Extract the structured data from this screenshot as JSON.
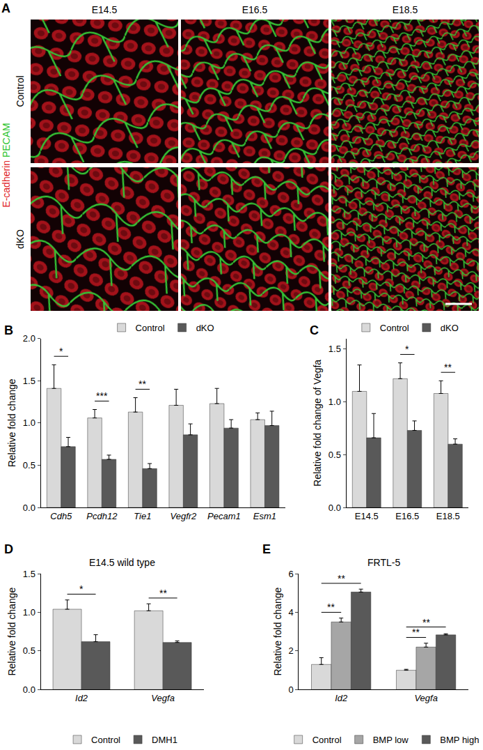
{
  "image_panel": {
    "panel": "A",
    "columns": [
      "E14.5",
      "E16.5",
      "E18.5"
    ],
    "rows": [
      "Control",
      "dKO"
    ],
    "stains": [
      {
        "text": "E-cadherin",
        "color": "#e0201e"
      },
      {
        "text": "PECAM",
        "color": "#2ec42e"
      }
    ]
  },
  "chart_data": [
    {
      "panel": "B",
      "type": "bar",
      "categories": [
        "Cdh5",
        "Pcdh12",
        "Tie1",
        "Vegfr2",
        "Pecam1",
        "Esm1"
      ],
      "series": [
        {
          "name": "Control",
          "color": "#d9d9d9",
          "values": [
            1.41,
            1.06,
            1.13,
            1.21,
            1.23,
            1.04
          ],
          "errors": [
            0.28,
            0.1,
            0.17,
            0.19,
            0.18,
            0.08
          ]
        },
        {
          "name": "dKO",
          "color": "#595959",
          "values": [
            0.72,
            0.57,
            0.46,
            0.86,
            0.94,
            0.97
          ],
          "errors": [
            0.11,
            0.05,
            0.06,
            0.13,
            0.1,
            0.17
          ]
        }
      ],
      "y_label": "Relative fold change",
      "ylim": [
        0,
        2
      ],
      "yticks": [
        {
          "value": 0,
          "label": "0.0"
        },
        {
          "value": 0.5,
          "label": "0.5"
        },
        {
          "value": 1,
          "label": "1.0"
        },
        {
          "value": 1.5,
          "label": "1.5"
        },
        {
          "value": 2,
          "label": "2.0"
        }
      ],
      "legend": "top",
      "significance": [
        {
          "category": "Cdh5",
          "between": [
            "Control",
            "dKO"
          ],
          "label": "*"
        },
        {
          "category": "Pcdh12",
          "between": [
            "Control",
            "dKO"
          ],
          "label": "***"
        },
        {
          "category": "Tie1",
          "between": [
            "Control",
            "dKO"
          ],
          "label": "**"
        }
      ]
    },
    {
      "panel": "C",
      "type": "bar",
      "categories": [
        "E14.5",
        "E16.5",
        "E18.5"
      ],
      "series": [
        {
          "name": "Control",
          "color": "#d9d9d9",
          "values": [
            1.1,
            1.22,
            1.08
          ],
          "errors": [
            0.25,
            0.15,
            0.12
          ]
        },
        {
          "name": "dKO",
          "color": "#595959",
          "values": [
            0.66,
            0.73,
            0.6
          ],
          "errors": [
            0.23,
            0.09,
            0.05
          ]
        }
      ],
      "y_label": "Relative fold change of Vegfa",
      "ylim": [
        0,
        1.6
      ],
      "yticks": [
        {
          "value": 0,
          "label": "0.0"
        },
        {
          "value": 0.5,
          "label": "0.5"
        },
        {
          "value": 1,
          "label": "1.0"
        },
        {
          "value": 1.5,
          "label": "1.5"
        }
      ],
      "legend": "top",
      "significance": [
        {
          "category": "E16.5",
          "between": [
            "Control",
            "dKO"
          ],
          "label": "*"
        },
        {
          "category": "E18.5",
          "between": [
            "Control",
            "dKO"
          ],
          "label": "**"
        }
      ]
    },
    {
      "panel": "D",
      "type": "bar",
      "title": "E14.5 wild type",
      "categories": [
        "Id2",
        "Vegfa"
      ],
      "series": [
        {
          "name": "Control",
          "color": "#d9d9d9",
          "values": [
            1.04,
            1.02
          ],
          "errors": [
            0.12,
            0.09
          ]
        },
        {
          "name": "DMH1",
          "color": "#595959",
          "values": [
            0.62,
            0.61
          ],
          "errors": [
            0.09,
            0.02
          ]
        }
      ],
      "y_label": "Relative fold change",
      "ylim": [
        0,
        1.5
      ],
      "yticks": [
        {
          "value": 0,
          "label": "0.0"
        },
        {
          "value": 0.5,
          "label": "0.5"
        },
        {
          "value": 1,
          "label": "1.0"
        },
        {
          "value": 1.5,
          "label": "1.5"
        }
      ],
      "legend": "bottom",
      "significance": [
        {
          "category": "Id2",
          "between": [
            "Control",
            "DMH1"
          ],
          "label": "*"
        },
        {
          "category": "Vegfa",
          "between": [
            "Control",
            "DMH1"
          ],
          "label": "**"
        }
      ]
    },
    {
      "panel": "E",
      "type": "bar",
      "title": "FRTL-5",
      "categories": [
        "Id2",
        "Vegfa"
      ],
      "series": [
        {
          "name": "Control",
          "color": "#d9d9d9",
          "values": [
            1.3,
            1.0
          ],
          "errors": [
            0.35,
            0.05
          ]
        },
        {
          "name": "BMP low",
          "color": "#a6a6a6",
          "values": [
            3.5,
            2.2
          ],
          "errors": [
            0.2,
            0.2
          ]
        },
        {
          "name": "BMP high",
          "color": "#595959",
          "values": [
            5.05,
            2.83
          ],
          "errors": [
            0.15,
            0.06
          ]
        }
      ],
      "y_label": "Relative fold change",
      "ylim": [
        0,
        6
      ],
      "yticks": [
        0,
        2,
        4,
        6
      ],
      "legend": "bottom",
      "significance": [
        {
          "category": "Id2",
          "between": [
            "Control",
            "BMP low"
          ],
          "label": "**"
        },
        {
          "category": "Id2",
          "between": [
            "Control",
            "BMP high"
          ],
          "label": "**"
        },
        {
          "category": "Vegfa",
          "between": [
            "Control",
            "BMP low"
          ],
          "label": "**"
        },
        {
          "category": "Vegfa",
          "between": [
            "Control",
            "BMP high"
          ],
          "label": "**"
        }
      ]
    }
  ]
}
